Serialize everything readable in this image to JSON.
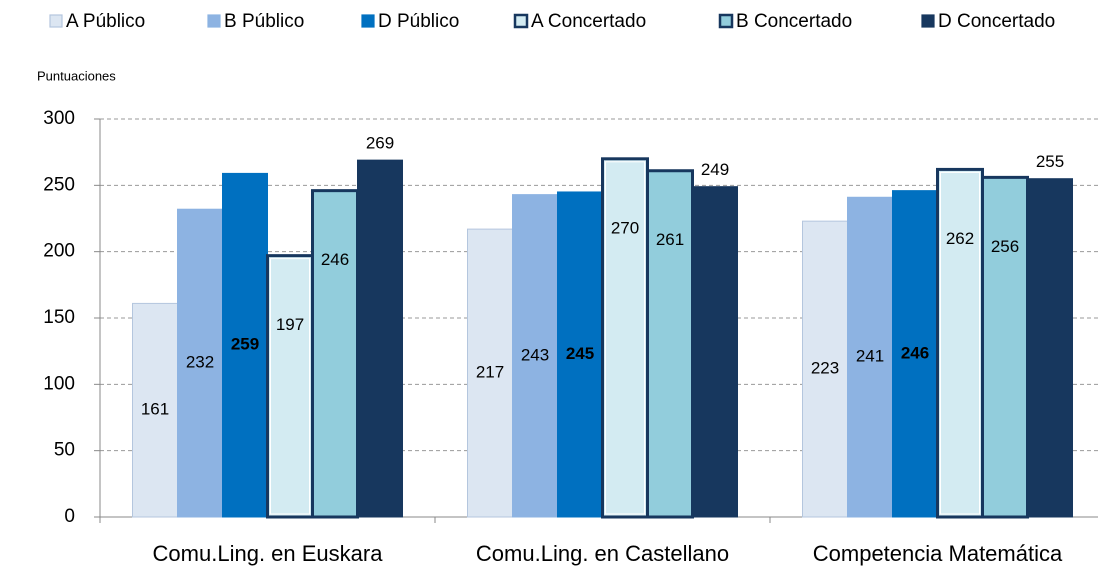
{
  "chart_data": {
    "type": "bar",
    "ylabel": "Puntuaciones",
    "categories": [
      "Comu.Ling. en Euskara",
      "Comu.Ling. en Castellano",
      "Competencia Matemática"
    ],
    "series": [
      {
        "name": "A Público",
        "color": "#dce6f2",
        "edgecolor": "#b4c6de",
        "values": [
          161,
          217,
          223
        ]
      },
      {
        "name": "B Público",
        "color": "#8db3e2",
        "edgecolor": "#8db3e2",
        "values": [
          232,
          243,
          241
        ]
      },
      {
        "name": "D Público",
        "color": "#0070c0",
        "edgecolor": "#0070c0",
        "values": [
          259,
          245,
          246
        ]
      },
      {
        "name": "A Concertado",
        "color": "#d3ebf2",
        "edgecolor": "#17375e",
        "values": [
          197,
          270,
          262
        ]
      },
      {
        "name": "B Concertado",
        "color": "#92cddc",
        "edgecolor": "#17375e",
        "values": [
          246,
          261,
          256
        ]
      },
      {
        "name": "D Concertado",
        "color": "#17375e",
        "edgecolor": "#17375e",
        "values": [
          269,
          249,
          255
        ]
      }
    ],
    "ylim": [
      0,
      300
    ],
    "yticks": [
      0,
      50,
      100,
      150,
      200,
      250,
      300
    ],
    "grid": true,
    "legend": "top"
  }
}
